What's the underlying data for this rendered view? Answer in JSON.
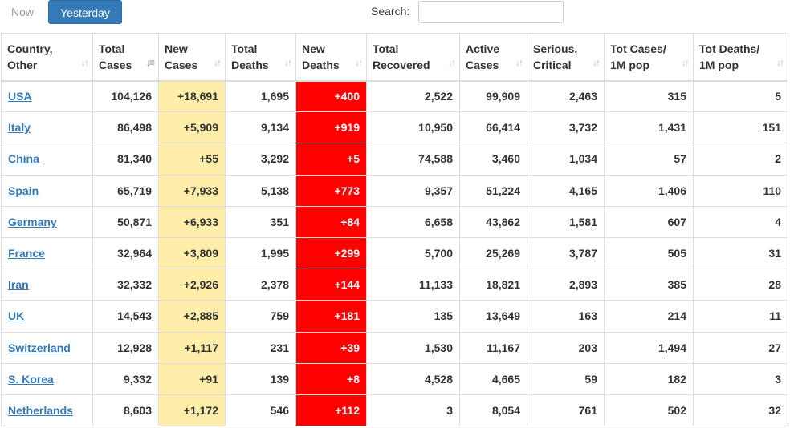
{
  "tabs": {
    "now": "Now",
    "yesterday": "Yesterday"
  },
  "search": {
    "label": "Search:",
    "value": ""
  },
  "columns": [
    {
      "line1": "Country,",
      "line2": "Other"
    },
    {
      "line1": "Total",
      "line2": "Cases"
    },
    {
      "line1": "New",
      "line2": "Cases"
    },
    {
      "line1": "Total",
      "line2": "Deaths"
    },
    {
      "line1": "New",
      "line2": "Deaths"
    },
    {
      "line1": "Total",
      "line2": "Recovered"
    },
    {
      "line1": "Active",
      "line2": "Cases"
    },
    {
      "line1": "Serious,",
      "line2": "Critical"
    },
    {
      "line1": "Tot Cases/",
      "line2": "1M pop"
    },
    {
      "line1": "Tot Deaths/",
      "line2": "1M pop"
    }
  ],
  "sort_icons": {
    "inactive": "sort-icon",
    "active": "sort-desc-icon"
  },
  "rows": [
    {
      "country": "USA",
      "total_cases": "104,126",
      "new_cases": "+18,691",
      "total_deaths": "1,695",
      "new_deaths": "+400",
      "total_recovered": "2,522",
      "active_cases": "99,909",
      "serious": "2,463",
      "cases_per_m": "315",
      "deaths_per_m": "5"
    },
    {
      "country": "Italy",
      "total_cases": "86,498",
      "new_cases": "+5,909",
      "total_deaths": "9,134",
      "new_deaths": "+919",
      "total_recovered": "10,950",
      "active_cases": "66,414",
      "serious": "3,732",
      "cases_per_m": "1,431",
      "deaths_per_m": "151"
    },
    {
      "country": "China",
      "total_cases": "81,340",
      "new_cases": "+55",
      "total_deaths": "3,292",
      "new_deaths": "+5",
      "total_recovered": "74,588",
      "active_cases": "3,460",
      "serious": "1,034",
      "cases_per_m": "57",
      "deaths_per_m": "2"
    },
    {
      "country": "Spain",
      "total_cases": "65,719",
      "new_cases": "+7,933",
      "total_deaths": "5,138",
      "new_deaths": "+773",
      "total_recovered": "9,357",
      "active_cases": "51,224",
      "serious": "4,165",
      "cases_per_m": "1,406",
      "deaths_per_m": "110"
    },
    {
      "country": "Germany",
      "total_cases": "50,871",
      "new_cases": "+6,933",
      "total_deaths": "351",
      "new_deaths": "+84",
      "total_recovered": "6,658",
      "active_cases": "43,862",
      "serious": "1,581",
      "cases_per_m": "607",
      "deaths_per_m": "4"
    },
    {
      "country": "France",
      "total_cases": "32,964",
      "new_cases": "+3,809",
      "total_deaths": "1,995",
      "new_deaths": "+299",
      "total_recovered": "5,700",
      "active_cases": "25,269",
      "serious": "3,787",
      "cases_per_m": "505",
      "deaths_per_m": "31"
    },
    {
      "country": "Iran",
      "total_cases": "32,332",
      "new_cases": "+2,926",
      "total_deaths": "2,378",
      "new_deaths": "+144",
      "total_recovered": "11,133",
      "active_cases": "18,821",
      "serious": "2,893",
      "cases_per_m": "385",
      "deaths_per_m": "28"
    },
    {
      "country": "UK",
      "total_cases": "14,543",
      "new_cases": "+2,885",
      "total_deaths": "759",
      "new_deaths": "+181",
      "total_recovered": "135",
      "active_cases": "13,649",
      "serious": "163",
      "cases_per_m": "214",
      "deaths_per_m": "11"
    },
    {
      "country": "Switzerland",
      "total_cases": "12,928",
      "new_cases": "+1,117",
      "total_deaths": "231",
      "new_deaths": "+39",
      "total_recovered": "1,530",
      "active_cases": "11,167",
      "serious": "203",
      "cases_per_m": "1,494",
      "deaths_per_m": "27"
    },
    {
      "country": "S. Korea",
      "total_cases": "9,332",
      "new_cases": "+91",
      "total_deaths": "139",
      "new_deaths": "+8",
      "total_recovered": "4,528",
      "active_cases": "4,665",
      "serious": "59",
      "cases_per_m": "182",
      "deaths_per_m": "3"
    },
    {
      "country": "Netherlands",
      "total_cases": "8,603",
      "new_cases": "+1,172",
      "total_deaths": "546",
      "new_deaths": "+112",
      "total_recovered": "3",
      "active_cases": "8,054",
      "serious": "761",
      "cases_per_m": "502",
      "deaths_per_m": "32"
    }
  ]
}
